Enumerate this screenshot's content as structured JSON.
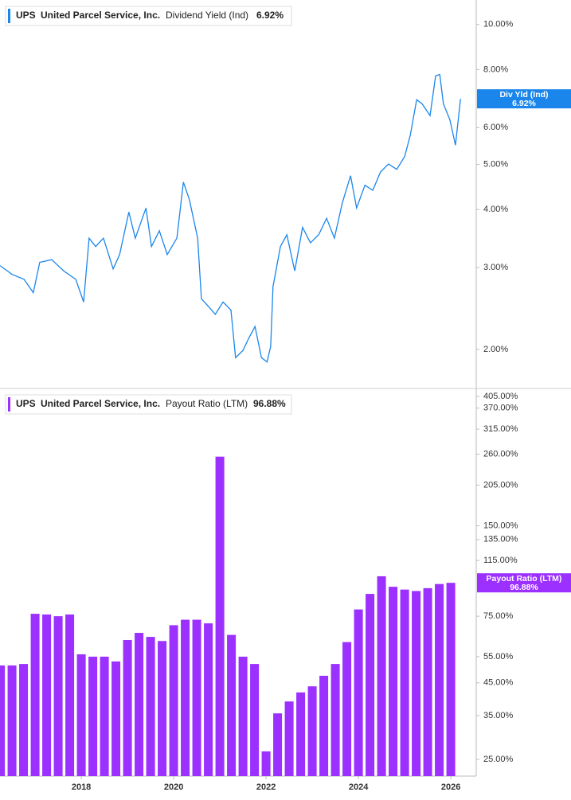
{
  "chart_data": [
    {
      "type": "line",
      "ticker": "UPS",
      "company": "United Parcel Service, Inc.",
      "metric": "Dividend Yield (Ind)",
      "last_value_label": "6.92%",
      "callout": {
        "name": "Div Yld (Ind)",
        "value_label": "6.92%"
      },
      "log_scale": true,
      "xlim": [
        2016.24,
        2026.55
      ],
      "ylim": [
        1.655,
        11.29
      ],
      "yticks": [
        {
          "value": 2,
          "label": "2.00%"
        },
        {
          "value": 3,
          "label": "3.00%"
        },
        {
          "value": 4,
          "label": "4.00%"
        },
        {
          "value": 5,
          "label": "5.00%"
        },
        {
          "value": 6,
          "label": "6.00%"
        },
        {
          "value": 8,
          "label": "8.00%"
        },
        {
          "value": 10,
          "label": "10.00%"
        }
      ],
      "x": [
        2016.24,
        2016.5,
        2016.76,
        2016.96,
        2017.1,
        2017.36,
        2017.62,
        2017.88,
        2018.05,
        2018.17,
        2018.31,
        2018.48,
        2018.69,
        2018.83,
        2019.03,
        2019.17,
        2019.4,
        2019.52,
        2019.69,
        2019.86,
        2020.07,
        2020.21,
        2020.34,
        2020.52,
        2020.6,
        2020.76,
        2020.9,
        2021.07,
        2021.24,
        2021.34,
        2021.5,
        2021.62,
        2021.76,
        2021.9,
        2022.02,
        2022.1,
        2022.15,
        2022.31,
        2022.45,
        2022.62,
        2022.79,
        2022.96,
        2023.14,
        2023.31,
        2023.48,
        2023.65,
        2023.83,
        2023.96,
        2024.14,
        2024.31,
        2024.48,
        2024.65,
        2024.83,
        2025.0,
        2025.12,
        2025.26,
        2025.38,
        2025.55,
        2025.67,
        2025.76,
        2025.84,
        2025.98,
        2026.1,
        2026.21
      ],
      "series": [
        {
          "name": "Dividend Yield (Ind)",
          "color": "#1a86ec",
          "values": [
            3.03,
            2.9,
            2.83,
            2.65,
            3.08,
            3.12,
            2.95,
            2.83,
            2.53,
            3.47,
            3.33,
            3.47,
            2.98,
            3.2,
            3.95,
            3.47,
            4.03,
            3.33,
            3.6,
            3.2,
            3.47,
            4.58,
            4.2,
            3.47,
            2.57,
            2.47,
            2.38,
            2.53,
            2.43,
            1.92,
            1.99,
            2.11,
            2.24,
            1.92,
            1.88,
            2.03,
            2.73,
            3.33,
            3.53,
            2.95,
            3.66,
            3.39,
            3.53,
            3.83,
            3.47,
            4.13,
            4.73,
            4.03,
            4.51,
            4.4,
            4.82,
            5.01,
            4.88,
            5.2,
            5.77,
            6.89,
            6.75,
            6.37,
            7.75,
            7.81,
            6.75,
            6.24,
            5.5,
            6.92
          ]
        }
      ]
    },
    {
      "type": "bar",
      "ticker": "UPS",
      "company": "United Parcel Service, Inc.",
      "metric": "Payout Ratio (LTM)",
      "last_value_label": "96.88%",
      "callout": {
        "name": "Payout Ratio (LTM)",
        "value_label": "96.88%"
      },
      "log_scale": true,
      "xlim": [
        2016.24,
        2026.55
      ],
      "ylim": [
        22,
        425
      ],
      "xticks": [
        2018,
        2020,
        2022,
        2024,
        2026
      ],
      "yticks": [
        {
          "value": 25,
          "label": "25.00%"
        },
        {
          "value": 35,
          "label": "35.00%"
        },
        {
          "value": 45,
          "label": "45.00%"
        },
        {
          "value": 55,
          "label": "55.00%"
        },
        {
          "value": 75,
          "label": "75.00%"
        },
        {
          "value": 115,
          "label": "115.00%"
        },
        {
          "value": 135,
          "label": "135.00%"
        },
        {
          "value": 150,
          "label": "150.00%"
        },
        {
          "value": 205,
          "label": "205.00%"
        },
        {
          "value": 260,
          "label": "260.00%"
        },
        {
          "value": 315,
          "label": "315.00%"
        },
        {
          "value": 370,
          "label": "370.00%"
        },
        {
          "value": 405,
          "label": "405.00%"
        }
      ],
      "x": [
        2016.25,
        2016.5,
        2016.75,
        2017.0,
        2017.25,
        2017.5,
        2017.75,
        2018.0,
        2018.25,
        2018.5,
        2018.75,
        2019.0,
        2019.25,
        2019.5,
        2019.75,
        2020.0,
        2020.25,
        2020.5,
        2020.75,
        2021.0,
        2021.25,
        2021.5,
        2021.75,
        2022.0,
        2022.25,
        2022.5,
        2022.75,
        2023.0,
        2023.25,
        2023.5,
        2023.75,
        2024.0,
        2024.25,
        2024.5,
        2024.75,
        2025.0,
        2025.25,
        2025.5,
        2025.75,
        2026.0
      ],
      "series": [
        {
          "name": "Payout Ratio (LTM)",
          "color": "#9b30ff",
          "values": [
            51.4,
            51.4,
            52,
            76.4,
            76,
            75,
            76,
            56,
            55,
            55,
            53,
            62.5,
            66,
            64,
            62,
            70,
            73,
            73,
            71,
            255,
            65,
            55,
            52,
            26.6,
            35.6,
            39,
            41.8,
            43.8,
            47.5,
            52,
            61.5,
            79,
            89,
            101.9,
            94,
            92,
            91,
            93,
            96,
            96.88
          ]
        }
      ]
    }
  ]
}
